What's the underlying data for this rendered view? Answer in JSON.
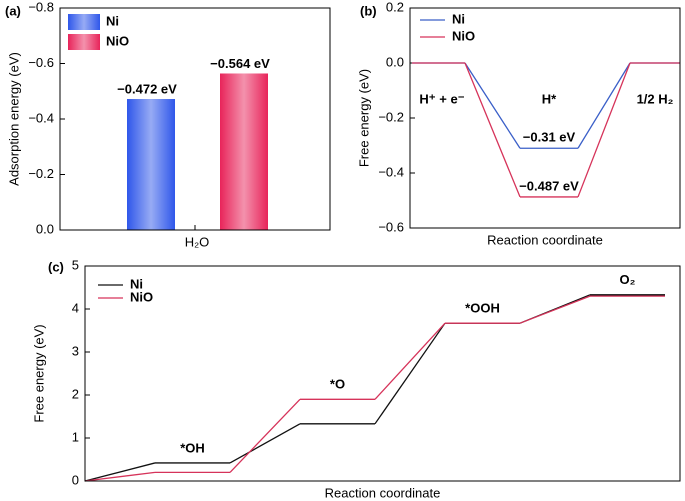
{
  "chart_data": [
    {
      "type": "bar",
      "panel": "(a)",
      "ylabel": "Adsorption energy (eV)",
      "categories": [
        "H₂O"
      ],
      "series": [
        {
          "name": "Ni",
          "color": "#2f57ea",
          "values": [
            -0.472
          ],
          "value_labels": [
            "−0.472 eV"
          ]
        },
        {
          "name": "NiO",
          "color": "#e8245a",
          "values": [
            -0.564
          ],
          "value_labels": [
            "−0.564 eV"
          ]
        }
      ],
      "ylim": [
        0,
        -0.8
      ],
      "yticks": [
        {
          "value": 0,
          "label": "0.0"
        },
        {
          "value": -0.2,
          "label": "−0.2"
        },
        {
          "value": -0.4,
          "label": "−0.4"
        },
        {
          "value": -0.6,
          "label": "−0.6"
        },
        {
          "value": -0.8,
          "label": "−0.8"
        }
      ]
    },
    {
      "type": "step",
      "panel": "(b)",
      "xlabel": "Reaction coordinate",
      "ylabel": "Free energy (eV)",
      "categories": [
        "H⁺ + e⁻",
        "H*",
        "1/2 H₂"
      ],
      "series": [
        {
          "name": "Ni",
          "color": "#3a5fc8",
          "values": [
            0,
            -0.31,
            0
          ],
          "value_labels": [
            null,
            "−0.31 eV",
            null
          ]
        },
        {
          "name": "NiO",
          "color": "#d6335a",
          "values": [
            0,
            -0.487,
            0
          ],
          "value_labels": [
            null,
            "−0.487 eV",
            null
          ]
        }
      ],
      "ylim": [
        -0.6,
        0.2
      ],
      "yticks": [
        {
          "value": 0.2,
          "label": "0.2"
        },
        {
          "value": 0,
          "label": "0.0"
        },
        {
          "value": -0.2,
          "label": "−0.2"
        },
        {
          "value": -0.4,
          "label": "−0.4"
        },
        {
          "value": -0.6,
          "label": "−0.6"
        }
      ]
    },
    {
      "type": "step",
      "panel": "(c)",
      "xlabel": "Reaction coordinate",
      "ylabel": "Free energy (eV)",
      "categories": [
        null,
        "*OH",
        "*O",
        "*OOH",
        "O₂"
      ],
      "series": [
        {
          "name": "Ni",
          "color": "#111111",
          "values": [
            0,
            0.42,
            1.33,
            3.67,
            4.33
          ]
        },
        {
          "name": "NiO",
          "color": "#d6335a",
          "values": [
            0,
            0.2,
            1.9,
            3.67,
            4.3
          ]
        }
      ],
      "ylim": [
        0,
        5
      ],
      "yticks": [
        0,
        1,
        2,
        3,
        4,
        5
      ]
    }
  ]
}
